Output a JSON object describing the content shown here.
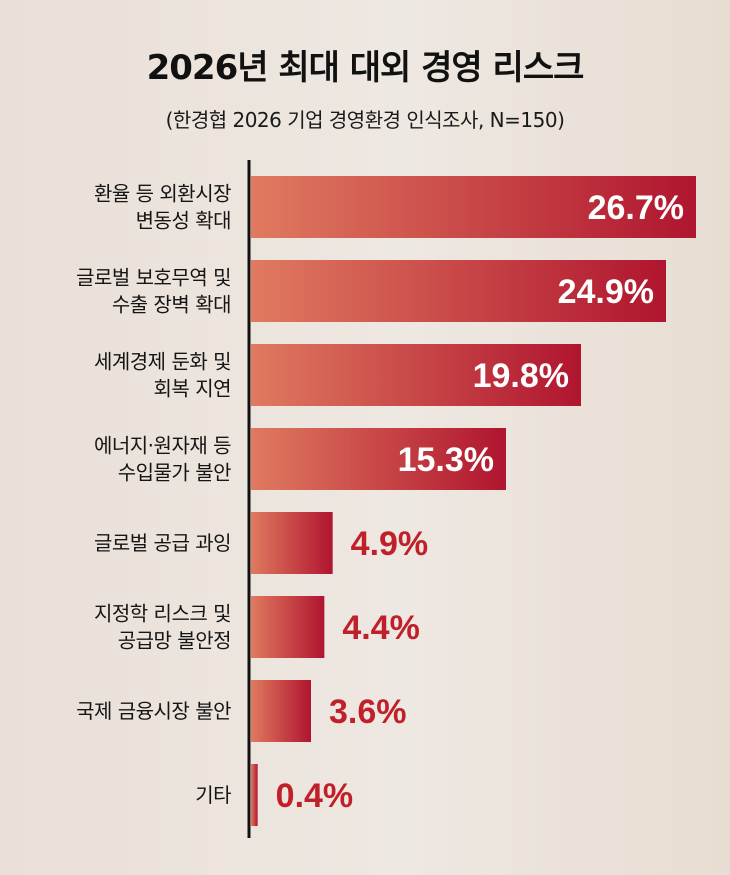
{
  "title": "2026년 최대 대외 경영 리스크",
  "subtitle": "(한경협 2026 기업 경영환경 인식조사, N=150)",
  "colors": {
    "bar_start": "#e07a60",
    "bar_end": "#b0152f",
    "outside_value": "#c0202a",
    "axis": "#111111"
  },
  "chart_data": {
    "type": "bar",
    "orientation": "horizontal",
    "title": "2026년 최대 대외 경영 리스크",
    "subtitle": "(한경협 2026 기업 경영환경 인식조사, N=150)",
    "unit": "%",
    "categories": [
      [
        "환율 등 외환시장",
        "변동성 확대"
      ],
      [
        "글로벌 보호무역 및",
        "수출 장벽 확대"
      ],
      [
        "세계경제 둔화 및",
        "회복 지연"
      ],
      [
        "에너지·원자재 등",
        "수입물가 불안"
      ],
      [
        "글로벌 공급 과잉"
      ],
      [
        "지정학 리스크 및",
        "공급망 불안정"
      ],
      [
        "국제 금융시장 불안"
      ],
      [
        "기타"
      ]
    ],
    "values": [
      26.7,
      24.9,
      19.8,
      15.3,
      4.9,
      4.4,
      3.6,
      0.4
    ],
    "value_labels": [
      "26.7%",
      "24.9%",
      "19.8%",
      "15.3%",
      "4.9%",
      "4.4%",
      "3.6%",
      "0.4%"
    ],
    "xlim": [
      0,
      26.7
    ],
    "grid": false,
    "legend": "none"
  }
}
